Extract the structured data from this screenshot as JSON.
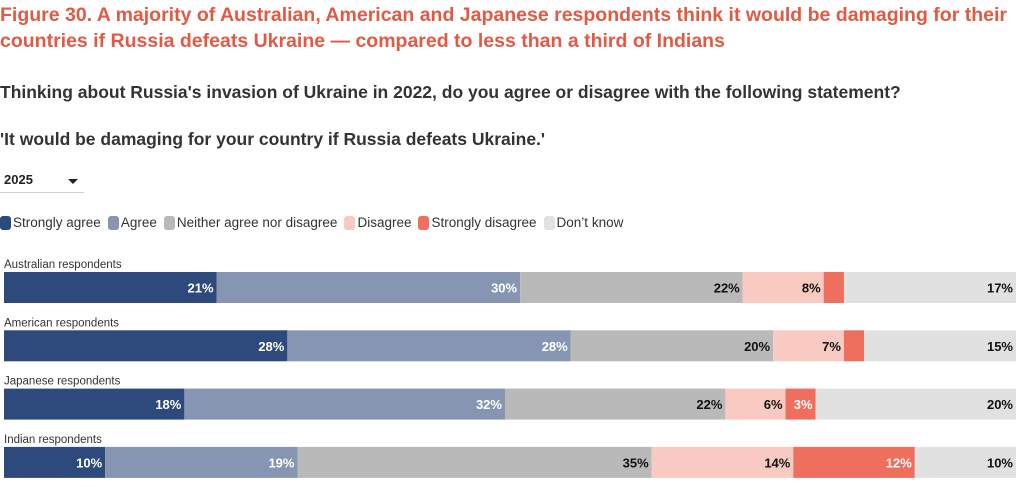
{
  "figure_title": "Figure 30. A majority of Australian, American and Japanese respondents think it would be damaging for their countries if Russia defeats Ukraine — compared to less than a third of Indians",
  "question": "Thinking about Russia's invasion of Ukraine in 2022, do you agree or disagree with the following statement?",
  "statement": "'It would be damaging for your country if Russia defeats Ukraine.'",
  "year_selector": {
    "selected": "2025"
  },
  "colors": {
    "strongly_agree": "#2e4a7d",
    "agree": "#8696b2",
    "neither": "#b9b9b9",
    "disagree": "#f8cac2",
    "strongly_disagree": "#ee6f5d",
    "dont_know": "#e1e1e1"
  },
  "chart_data": {
    "type": "bar",
    "orientation": "horizontal",
    "stacked": true,
    "normalized": true,
    "legend_position": "top-left",
    "categories": [
      "Australian respondents",
      "American respondents",
      "Japanese respondents",
      "Indian respondents"
    ],
    "series": [
      {
        "key": "strongly_agree",
        "name": "Strongly agree",
        "values": [
          21,
          28,
          18,
          10
        ],
        "labels": [
          "21%",
          "28%",
          "18%",
          "10%"
        ],
        "label_color": "#ffffff"
      },
      {
        "key": "agree",
        "name": "Agree",
        "values": [
          30,
          28,
          32,
          19
        ],
        "labels": [
          "30%",
          "28%",
          "32%",
          "19%"
        ],
        "label_color": "#ffffff"
      },
      {
        "key": "neither",
        "name": "Neither agree nor disagree",
        "values": [
          22,
          20,
          22,
          35
        ],
        "labels": [
          "22%",
          "20%",
          "22%",
          "35%"
        ],
        "label_color": "#111111"
      },
      {
        "key": "disagree",
        "name": "Disagree",
        "values": [
          8,
          7,
          6,
          14
        ],
        "labels": [
          "8%",
          "7%",
          "6%",
          "14%"
        ],
        "label_color": "#111111"
      },
      {
        "key": "strongly_disagree",
        "name": "Strongly disagree",
        "values": [
          2,
          2,
          3,
          12
        ],
        "labels": [
          "",
          "",
          "3%",
          "12%"
        ],
        "label_color": "#ffffff"
      },
      {
        "key": "dont_know",
        "name": "Don’t know",
        "values": [
          17,
          15,
          20,
          10
        ],
        "labels": [
          "17%",
          "15%",
          "20%",
          "10%"
        ],
        "label_color": "#111111"
      }
    ]
  }
}
